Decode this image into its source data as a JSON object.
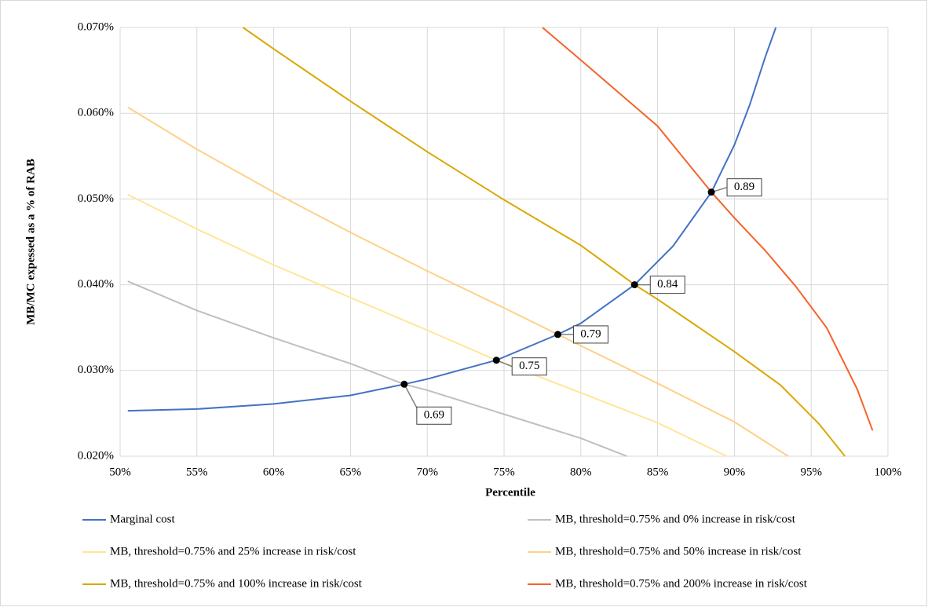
{
  "chart_data": {
    "type": "line",
    "x_label": "Percentile",
    "y_label": "MB/MC expessed as a % of RAB",
    "xlim": [
      50,
      100
    ],
    "xticks": [
      {
        "value": 50,
        "label": "50%"
      },
      {
        "value": 55,
        "label": "55%"
      },
      {
        "value": 60,
        "label": "60%"
      },
      {
        "value": 65,
        "label": "65%"
      },
      {
        "value": 70,
        "label": "70%"
      },
      {
        "value": 75,
        "label": "75%"
      },
      {
        "value": 80,
        "label": "80%"
      },
      {
        "value": 85,
        "label": "85%"
      },
      {
        "value": 90,
        "label": "90%"
      },
      {
        "value": 95,
        "label": "95%"
      },
      {
        "value": 100,
        "label": "100%"
      }
    ],
    "ylim": [
      0.02,
      0.07
    ],
    "yticks": [
      {
        "value": 0.02,
        "label": "0.020%"
      },
      {
        "value": 0.03,
        "label": "0.030%"
      },
      {
        "value": 0.04,
        "label": "0.040%"
      },
      {
        "value": 0.05,
        "label": "0.050%"
      },
      {
        "value": 0.06,
        "label": "0.060%"
      },
      {
        "value": 0.07,
        "label": "0.070%"
      }
    ],
    "grid": true,
    "legend": "bottom",
    "series": [
      {
        "name": "Marginal cost",
        "color": "#4472c4",
        "x": [
          50.5,
          55,
          60,
          65,
          68.5,
          70,
          74.5,
          78.5,
          80,
          83.5,
          86,
          88.5,
          90,
          91,
          92,
          92.7
        ],
        "values": [
          0.0253,
          0.0255,
          0.0261,
          0.0271,
          0.0284,
          0.029,
          0.0312,
          0.0342,
          0.0355,
          0.04,
          0.0445,
          0.0508,
          0.0563,
          0.061,
          0.0665,
          0.07
        ]
      },
      {
        "name": "MB, threshold=0.75% and 0% increase in risk/cost",
        "color": "#bfbfbf",
        "x": [
          50.5,
          55,
          60,
          65,
          68.5,
          70,
          75,
          80,
          83
        ],
        "values": [
          0.0404,
          0.037,
          0.0338,
          0.0308,
          0.0284,
          0.0277,
          0.0249,
          0.0221,
          0.02
        ]
      },
      {
        "name": "MB, threshold=0.75% and 25% increase in risk/cost",
        "color": "#ffe699",
        "x": [
          50.5,
          55,
          60,
          65,
          70,
          74.5,
          80,
          85,
          89.5
        ],
        "values": [
          0.0505,
          0.0465,
          0.0423,
          0.0385,
          0.0347,
          0.0312,
          0.0274,
          0.0239,
          0.02
        ]
      },
      {
        "name": "MB, threshold=0.75% and 50% increase in risk/cost",
        "color": "#ffd08a",
        "x": [
          50.5,
          55,
          60,
          65,
          70,
          75,
          78.5,
          85,
          90,
          93.5
        ],
        "values": [
          0.0607,
          0.0558,
          0.0508,
          0.0461,
          0.0416,
          0.0373,
          0.0342,
          0.0285,
          0.024,
          0.02
        ]
      },
      {
        "name": "MB, threshold=0.75% and 100% increase in risk/cost",
        "color": "#d9a800",
        "x": [
          58,
          60,
          65,
          70,
          75,
          80,
          83.5,
          85,
          90,
          93,
          95.5,
          97.2
        ],
        "values": [
          0.07,
          0.0675,
          0.0614,
          0.0555,
          0.0499,
          0.0446,
          0.04,
          0.0383,
          0.0322,
          0.0283,
          0.0238,
          0.02
        ]
      },
      {
        "name": "MB, threshold=0.75% and 200% increase in risk/cost",
        "color": "#f4642a",
        "x": [
          77.5,
          80,
          85,
          88.5,
          90,
          92,
          94,
          96,
          98,
          99
        ],
        "values": [
          0.07,
          0.0662,
          0.0585,
          0.0508,
          0.0478,
          0.044,
          0.0398,
          0.035,
          0.0278,
          0.023
        ]
      }
    ],
    "annotations": [
      {
        "text": "0.69",
        "x": 68.5,
        "y": 0.0284
      },
      {
        "text": "0.75",
        "x": 74.5,
        "y": 0.0312
      },
      {
        "text": "0.79",
        "x": 78.5,
        "y": 0.0342
      },
      {
        "text": "0.84",
        "x": 83.5,
        "y": 0.04
      },
      {
        "text": "0.89",
        "x": 88.5,
        "y": 0.0508
      }
    ]
  }
}
